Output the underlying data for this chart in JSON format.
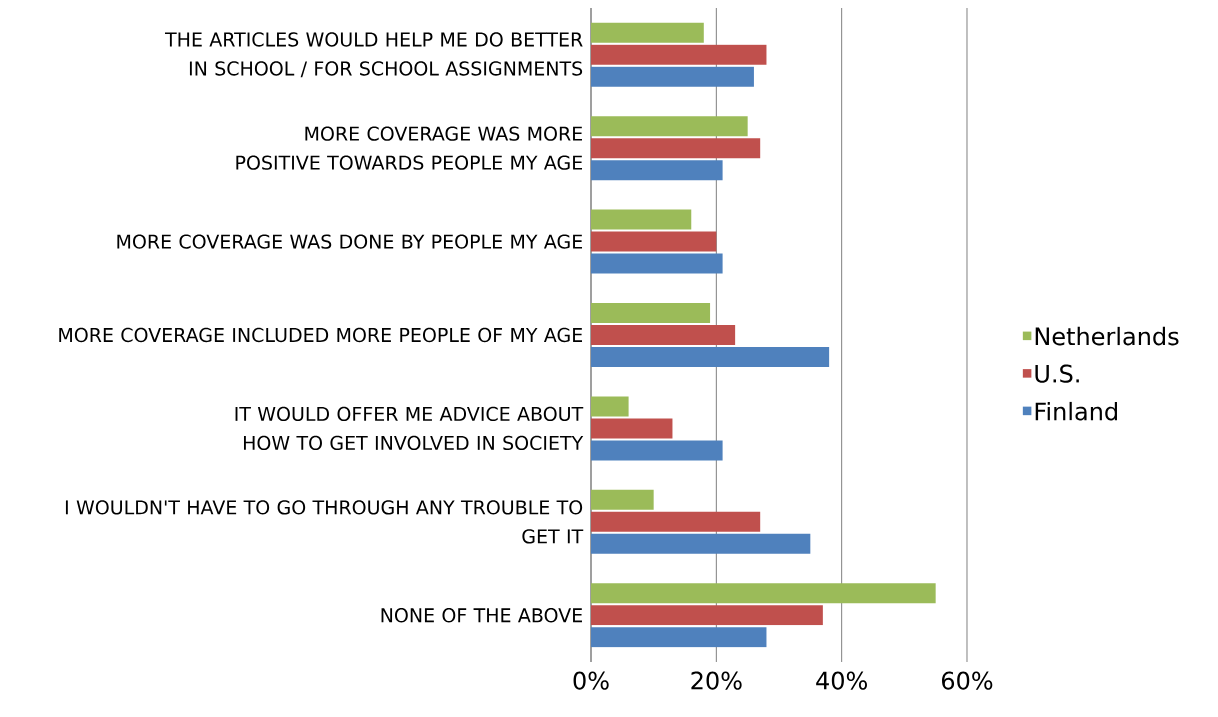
{
  "chart_data": {
    "type": "bar",
    "orientation": "horizontal",
    "categories": [
      "THE ARTICLES WOULD HELP ME DO BETTER IN SCHOOL / FOR SCHOOL ASSIGNMENTS",
      "MORE COVERAGE WAS MORE POSITIVE TOWARDS PEOPLE MY AGE",
      "MORE COVERAGE WAS DONE BY PEOPLE MY AGE",
      "MORE COVERAGE INCLUDED MORE PEOPLE OF MY AGE",
      "IT WOULD OFFER ME ADVICE ABOUT HOW TO GET INVOLVED IN SOCIETY",
      "I WOULDN'T HAVE TO GO THROUGH ANY TROUBLE TO GET IT",
      "NONE OF THE ABOVE"
    ],
    "series": [
      {
        "name": "Netherlands",
        "color": "#9bbb59",
        "values": [
          18,
          25,
          16,
          19,
          6,
          10,
          55
        ]
      },
      {
        "name": "U.S.",
        "color": "#c0504d",
        "values": [
          28,
          27,
          20,
          23,
          13,
          27,
          37
        ]
      },
      {
        "name": "Finland",
        "color": "#4f81bd",
        "values": [
          26,
          21,
          21,
          38,
          21,
          35,
          28
        ]
      }
    ],
    "xlim": [
      0,
      60
    ],
    "xticks": [
      {
        "value": 0,
        "label": "0%"
      },
      {
        "value": 20,
        "label": "20%"
      },
      {
        "value": 40,
        "label": "40%"
      },
      {
        "value": 60,
        "label": "60%"
      }
    ],
    "grid": "x",
    "legend": "right"
  }
}
